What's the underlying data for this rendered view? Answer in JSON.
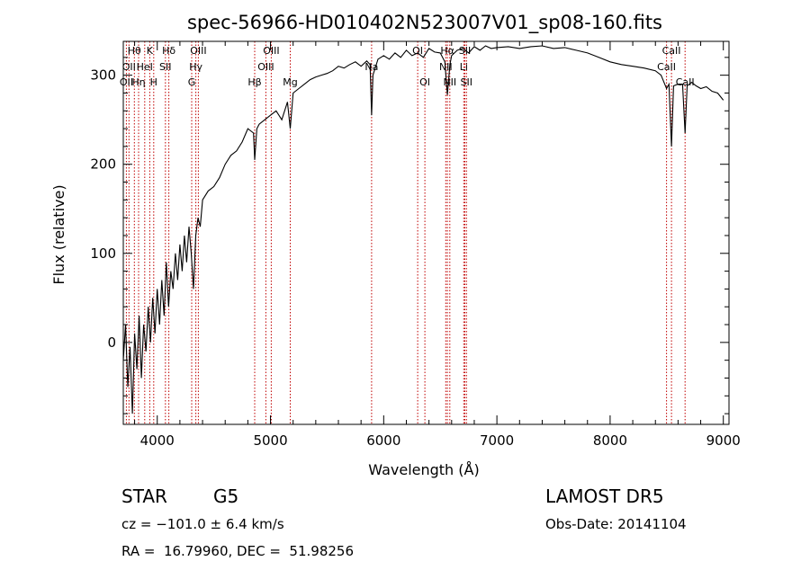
{
  "chart_data": {
    "type": "line",
    "title": "spec-56966-HD010402N523007V01_sp08-160.fits",
    "xlabel": "Wavelength (Å)",
    "ylabel": "Flux (relative)",
    "xlim": [
      3700,
      9050
    ],
    "ylim": [
      -92,
      338
    ],
    "x_ticks": [
      4000,
      5000,
      6000,
      7000,
      8000,
      9000
    ],
    "y_ticks": [
      0,
      100,
      200,
      300
    ],
    "grid": false,
    "line_color": "#000000",
    "marker_color": "#c00000",
    "series": [
      {
        "x": [
          3700,
          3720,
          3740,
          3760,
          3780,
          3800,
          3820,
          3840,
          3860,
          3880,
          3900,
          3920,
          3940,
          3960,
          3980,
          4000,
          4020,
          4040,
          4060,
          4080,
          4100,
          4120,
          4140,
          4160,
          4180,
          4200,
          4220,
          4240,
          4260,
          4280,
          4300,
          4320,
          4340,
          4360,
          4380,
          4400,
          4450,
          4500,
          4550,
          4600,
          4650,
          4700,
          4750,
          4800,
          4850,
          4861,
          4880,
          4900,
          4950,
          5000,
          5050,
          5100,
          5150,
          5175,
          5200,
          5250,
          5300,
          5350,
          5400,
          5450,
          5500,
          5550,
          5600,
          5650,
          5700,
          5750,
          5800,
          5850,
          5880,
          5893,
          5905,
          5950,
          6000,
          6050,
          6100,
          6150,
          6200,
          6250,
          6300,
          6350,
          6400,
          6450,
          6500,
          6540,
          6563,
          6585,
          6600,
          6650,
          6700,
          6750,
          6800,
          6850,
          6900,
          6950,
          7000,
          7100,
          7200,
          7300,
          7400,
          7500,
          7600,
          7700,
          7800,
          7900,
          8000,
          8100,
          8200,
          8300,
          8400,
          8450,
          8498,
          8520,
          8542,
          8560,
          8600,
          8640,
          8662,
          8680,
          8720,
          8760,
          8800,
          8850,
          8900,
          8950,
          9000
        ],
        "y": [
          -20,
          20,
          -50,
          -5,
          -80,
          10,
          -30,
          30,
          -40,
          20,
          -10,
          40,
          0,
          50,
          10,
          60,
          20,
          70,
          30,
          90,
          40,
          80,
          60,
          100,
          70,
          110,
          80,
          120,
          90,
          130,
          100,
          60,
          120,
          140,
          130,
          160,
          170,
          175,
          185,
          200,
          210,
          215,
          225,
          240,
          235,
          205,
          240,
          245,
          250,
          255,
          260,
          250,
          270,
          240,
          280,
          285,
          290,
          295,
          298,
          300,
          302,
          305,
          310,
          308,
          312,
          315,
          310,
          316,
          312,
          255,
          300,
          318,
          322,
          318,
          325,
          320,
          328,
          322,
          325,
          320,
          330,
          326,
          325,
          315,
          278,
          312,
          322,
          328,
          330,
          325,
          332,
          328,
          333,
          330,
          331,
          332,
          330,
          332,
          333,
          330,
          331,
          328,
          325,
          320,
          315,
          312,
          310,
          308,
          305,
          300,
          285,
          290,
          220,
          288,
          290,
          290,
          235,
          288,
          292,
          288,
          285,
          287,
          282,
          280,
          272
        ]
      }
    ],
    "spectral_lines": [
      {
        "wavelength": 3727,
        "label": "OII",
        "row": 3
      },
      {
        "wavelength": 3750,
        "label": "OII",
        "row": 2
      },
      {
        "wavelength": 3798,
        "label": "Hθ",
        "row": 1
      },
      {
        "wavelength": 3835,
        "label": "Hη",
        "row": 3
      },
      {
        "wavelength": 3889,
        "label": "HeI",
        "row": 2
      },
      {
        "wavelength": 3934,
        "label": "K",
        "row": 1
      },
      {
        "wavelength": 3969,
        "label": "H",
        "row": 3
      },
      {
        "wavelength": 4072,
        "label": "SII",
        "row": 2
      },
      {
        "wavelength": 4102,
        "label": "Hδ",
        "row": 1
      },
      {
        "wavelength": 4304,
        "label": "G",
        "row": 3
      },
      {
        "wavelength": 4341,
        "label": "Hγ",
        "row": 2
      },
      {
        "wavelength": 4363,
        "label": "OIII",
        "row": 1
      },
      {
        "wavelength": 4861,
        "label": "Hβ",
        "row": 3
      },
      {
        "wavelength": 4959,
        "label": "OIII",
        "row": 2
      },
      {
        "wavelength": 5007,
        "label": "OIII",
        "row": 1
      },
      {
        "wavelength": 5175,
        "label": "Mg",
        "row": 3
      },
      {
        "wavelength": 5893,
        "label": "Na",
        "row": 2
      },
      {
        "wavelength": 6300,
        "label": "OI",
        "row": 1
      },
      {
        "wavelength": 6364,
        "label": "OI",
        "row": 3
      },
      {
        "wavelength": 6548,
        "label": "NII",
        "row": 2
      },
      {
        "wavelength": 6563,
        "label": "Hα",
        "row": 1
      },
      {
        "wavelength": 6584,
        "label": "NII",
        "row": 3
      },
      {
        "wavelength": 6707,
        "label": "Li",
        "row": 2
      },
      {
        "wavelength": 6717,
        "label": "SII",
        "row": 1
      },
      {
        "wavelength": 6731,
        "label": "SII",
        "row": 3
      },
      {
        "wavelength": 8498,
        "label": "CaII",
        "row": 2
      },
      {
        "wavelength": 8542,
        "label": "CaII",
        "row": 1
      },
      {
        "wavelength": 8662,
        "label": "CaII",
        "row": 3
      }
    ]
  },
  "info": {
    "object_class": "STAR",
    "subclass": "G5",
    "survey": "LAMOST DR5",
    "redshift_text": "cz = −101.0 ± 6.4 km/s",
    "obs_date_text": "Obs-Date: 20141104",
    "coords_text": "RA =  16.79960, DEC =  51.98256"
  }
}
